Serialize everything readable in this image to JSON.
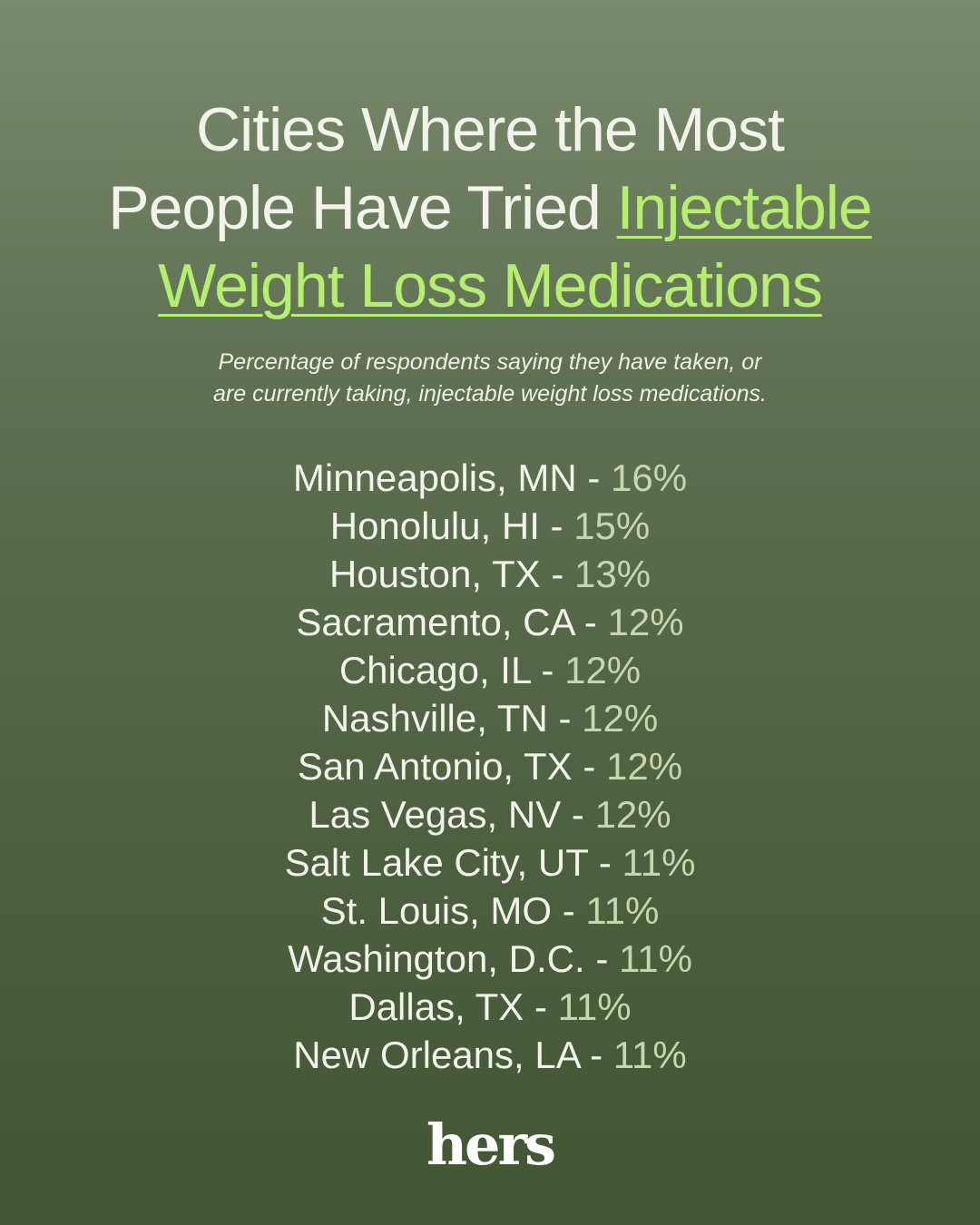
{
  "title": {
    "line1": "Cities Where the Most",
    "line2_plain": "People Have Tried ",
    "line2_highlight": "Injectable",
    "line3_highlight": "Weight Loss Medications",
    "highlight_color": "#b4f06e"
  },
  "subtitle": {
    "line1": "Percentage of respondents saying they have taken, or",
    "line2": "are currently taking, injectable weight loss medications."
  },
  "separator": "-",
  "cities": [
    {
      "city": "Minneapolis, MN",
      "percent": "16%"
    },
    {
      "city": "Honolulu, HI",
      "percent": "15%"
    },
    {
      "city": "Houston, TX",
      "percent": "13%"
    },
    {
      "city": "Sacramento, CA",
      "percent": "12%"
    },
    {
      "city": "Chicago, IL",
      "percent": "12%"
    },
    {
      "city": "Nashville, TN",
      "percent": "12%"
    },
    {
      "city": "San Antonio, TX",
      "percent": "12%"
    },
    {
      "city": "Las Vegas, NV",
      "percent": "12%"
    },
    {
      "city": "Salt Lake City, UT",
      "percent": "11%"
    },
    {
      "city": "St. Louis, MO",
      "percent": "11%"
    },
    {
      "city": "Washington, D.C.",
      "percent": "11%"
    },
    {
      "city": "Dallas, TX",
      "percent": "11%"
    },
    {
      "city": "New Orleans, LA",
      "percent": "11%"
    }
  ],
  "brand": {
    "logo_text": "hers"
  },
  "colors": {
    "background_top": "#7a8a6c",
    "background_bottom": "#435634",
    "text": "#f2f3ea",
    "percent": "#c8d6ae"
  }
}
